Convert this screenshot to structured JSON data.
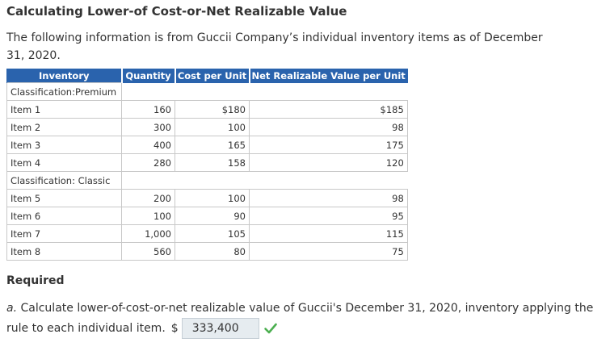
{
  "title": "Calculating Lower-of Cost-or-Net Realizable Value",
  "intro": "The following information is from Guccii Company’s individual inventory items as of December 31, 2020.",
  "table": {
    "headers": [
      "Inventory",
      "Quantity",
      "Cost per Unit",
      "Net Realizable Value per Unit"
    ],
    "sections": [
      {
        "label": "Classification:Premium",
        "rows": [
          {
            "item": "Item 1",
            "quantity": "160",
            "cost": "$180",
            "nrv": "$185"
          },
          {
            "item": "Item 2",
            "quantity": "300",
            "cost": "100",
            "nrv": "98"
          },
          {
            "item": "Item 3",
            "quantity": "400",
            "cost": "165",
            "nrv": "175"
          },
          {
            "item": "Item 4",
            "quantity": "280",
            "cost": "158",
            "nrv": "120"
          }
        ]
      },
      {
        "label": "Classification: Classic",
        "rows": [
          {
            "item": "Item 5",
            "quantity": "200",
            "cost": "100",
            "nrv": "98"
          },
          {
            "item": "Item 6",
            "quantity": "100",
            "cost": "90",
            "nrv": "95"
          },
          {
            "item": "Item 7",
            "quantity": "1,000",
            "cost": "105",
            "nrv": "115"
          },
          {
            "item": "Item 8",
            "quantity": "560",
            "cost": "80",
            "nrv": "75"
          }
        ]
      }
    ]
  },
  "required": {
    "heading": "Required",
    "letter": "a.",
    "question_line1": "Calculate lower-of-cost-or-net realizable value of Guccii's December 31, 2020, inventory applying the",
    "question_line2": "rule to each individual item.",
    "currency": "$",
    "answer_value": "333,400",
    "status_icon": "check-icon",
    "status_color": "#4caf50"
  }
}
